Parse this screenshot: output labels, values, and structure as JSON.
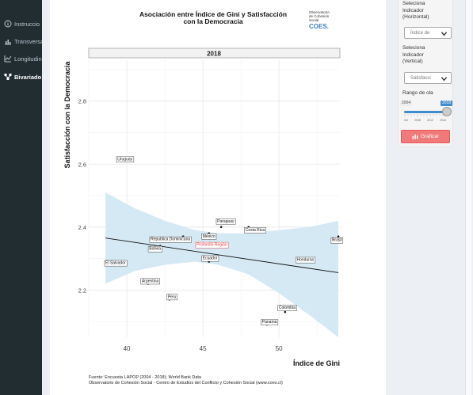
{
  "sidebar": {
    "items": [
      {
        "label": "Instruccio",
        "icon": "info-icon"
      },
      {
        "label": "Transversa",
        "icon": "bar-chart-icon"
      },
      {
        "label": "Longitudin",
        "icon": "line-chart-icon"
      },
      {
        "label": "Bivariado",
        "icon": "network-icon",
        "active": true
      }
    ]
  },
  "controls": {
    "x_label": [
      "Seleciona",
      "Indicador",
      "(Horizontal)"
    ],
    "x_value": "Índice de",
    "y_label": [
      "Seleciona",
      "Indicador",
      "(Vertical)"
    ],
    "y_value": "Satisfacci",
    "range_label": "Rango de ola",
    "range_min": "2004",
    "range_max": "2018",
    "range_ticks": [
      "2004",
      "2008",
      "2012",
      "2016"
    ],
    "button_label": "Graficar"
  },
  "plot": {
    "title_line1": "Asociación entre Índice de Gini y Satisfacción",
    "title_line2": "con la Democracia",
    "logo_lines": [
      "Observatorio",
      "de Cohesión",
      "Social"
    ],
    "logo_mark": "COES.",
    "panel_label": "2018",
    "footer_line1": "Fuente: Encuesta LAPOP (2004 - 2018); World Bank Data",
    "footer_line2": "Observatorio de Cohesión Social - Centro de Estudios del Conflicto y Cohesión Social (www.coes.cl)",
    "colors": {
      "ribbon": "#d5e9f4",
      "highlight": "#e23b3b",
      "grid": "#e8e8e8"
    }
  },
  "chart_data": {
    "type": "scatter",
    "xlabel": "Índice de Gini",
    "ylabel": "Satisfacción con la Democracia",
    "xlim": [
      37.5,
      54
    ],
    "ylim": [
      2.05,
      2.93
    ],
    "x_ticks": [
      40,
      45,
      50
    ],
    "y_ticks": [
      2.2,
      2.4,
      2.6,
      2.8
    ],
    "grid": true,
    "facet": "2018",
    "points": [
      {
        "label": "Uruguay",
        "x": 39.7,
        "y": 2.62
      },
      {
        "label": "Paraguay",
        "x": 46.2,
        "y": 2.4
      },
      {
        "label": "Costa Rica",
        "x": 48.0,
        "y": 2.4
      },
      {
        "label": "Brasil",
        "x": 53.9,
        "y": 2.37
      },
      {
        "label": "México",
        "x": 45.4,
        "y": 2.38
      },
      {
        "label": "Republica Dominicana",
        "x": 43.7,
        "y": 2.37
      },
      {
        "label": "Promedio Región",
        "x": 45.0,
        "y": 2.35,
        "highlight": true
      },
      {
        "label": "Bolivia",
        "x": 42.2,
        "y": 2.34
      },
      {
        "label": "Ecuador",
        "x": 45.4,
        "y": 2.29
      },
      {
        "label": "El Salvador",
        "x": 38.6,
        "y": 2.29
      },
      {
        "label": "Honduras",
        "x": 52.1,
        "y": 2.3
      },
      {
        "label": "Argentina",
        "x": 41.4,
        "y": 2.22
      },
      {
        "label": "Peru",
        "x": 42.8,
        "y": 2.17
      },
      {
        "label": "Colombia",
        "x": 50.4,
        "y": 2.13
      },
      {
        "label": "Panama",
        "x": 49.2,
        "y": 2.09
      }
    ],
    "trend": {
      "x": [
        38.6,
        53.9
      ],
      "y": [
        2.365,
        2.255
      ]
    },
    "ribbon": {
      "x": [
        38.6,
        40.5,
        42.5,
        44.5,
        46.0,
        48.0,
        50.0,
        52.0,
        53.9
      ],
      "upper": [
        2.51,
        2.46,
        2.42,
        2.39,
        2.38,
        2.38,
        2.39,
        2.4,
        2.42
      ],
      "lower": [
        2.22,
        2.26,
        2.28,
        2.29,
        2.28,
        2.25,
        2.19,
        2.12,
        2.05
      ]
    }
  }
}
